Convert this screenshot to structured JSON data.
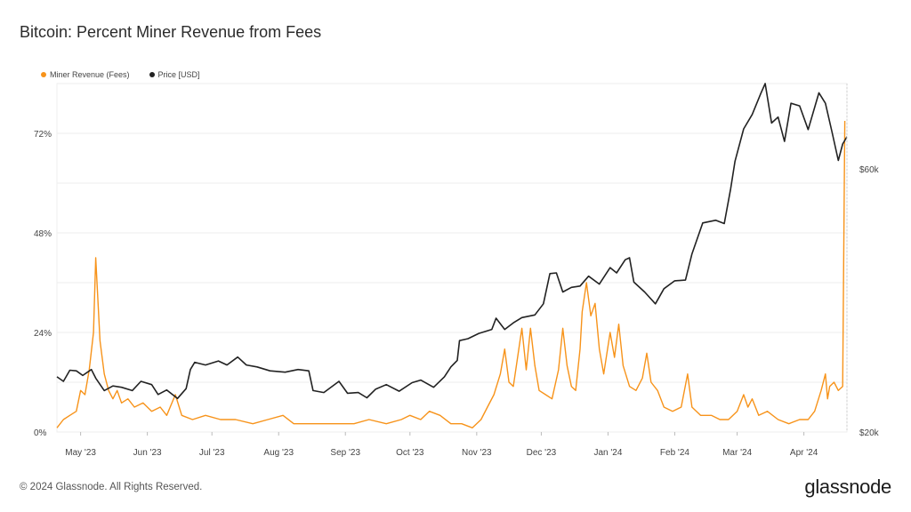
{
  "title": "Bitcoin: Percent Miner Revenue from Fees",
  "footer": "© 2024 Glassnode. All Rights Reserved.",
  "brand": "glassnode",
  "chart_data": {
    "type": "line",
    "legend_position": "top-left",
    "grid": true,
    "x_ticks": [
      "May '23",
      "Jun '23",
      "Jul '23",
      "Aug '23",
      "Sep '23",
      "Oct '23",
      "Nov '23",
      "Dec '23",
      "Jan '24",
      "Feb '24",
      "Mar '24",
      "Apr '24"
    ],
    "y_left_ticks": [
      {
        "value": 0,
        "label": "0%"
      },
      {
        "value": 24,
        "label": "24%"
      },
      {
        "value": 48,
        "label": "48%"
      },
      {
        "value": 72,
        "label": "72%"
      }
    ],
    "y_right_ticks": [
      {
        "value": 20000,
        "label": "$20k"
      },
      {
        "value": 60000,
        "label": "$60k"
      }
    ],
    "ylim_left": [
      0,
      84
    ],
    "ylim_right": [
      20000,
      73000
    ],
    "xlim": [
      "2023-04-20",
      "2024-04-21"
    ],
    "series": [
      {
        "name": "Miner Revenue (Fees)",
        "axis": "left",
        "color": "#f7931a",
        "points": [
          [
            "2023-04-20",
            1
          ],
          [
            "2023-04-23",
            3
          ],
          [
            "2023-04-26",
            4
          ],
          [
            "2023-04-29",
            5
          ],
          [
            "2023-05-01",
            10
          ],
          [
            "2023-05-03",
            9
          ],
          [
            "2023-05-05",
            15
          ],
          [
            "2023-05-07",
            24
          ],
          [
            "2023-05-08",
            42
          ],
          [
            "2023-05-10",
            22
          ],
          [
            "2023-05-12",
            14
          ],
          [
            "2023-05-14",
            10
          ],
          [
            "2023-05-16",
            8
          ],
          [
            "2023-05-18",
            10
          ],
          [
            "2023-05-20",
            7
          ],
          [
            "2023-05-23",
            8
          ],
          [
            "2023-05-26",
            6
          ],
          [
            "2023-05-30",
            7
          ],
          [
            "2023-06-03",
            5
          ],
          [
            "2023-06-07",
            6
          ],
          [
            "2023-06-10",
            4
          ],
          [
            "2023-06-14",
            9
          ],
          [
            "2023-06-17",
            4
          ],
          [
            "2023-06-22",
            3
          ],
          [
            "2023-06-28",
            4
          ],
          [
            "2023-07-05",
            3
          ],
          [
            "2023-07-12",
            3
          ],
          [
            "2023-07-20",
            2
          ],
          [
            "2023-07-27",
            3
          ],
          [
            "2023-08-03",
            4
          ],
          [
            "2023-08-08",
            2
          ],
          [
            "2023-08-15",
            2
          ],
          [
            "2023-08-22",
            2
          ],
          [
            "2023-08-30",
            2
          ],
          [
            "2023-09-05",
            2
          ],
          [
            "2023-09-12",
            3
          ],
          [
            "2023-09-20",
            2
          ],
          [
            "2023-09-27",
            3
          ],
          [
            "2023-10-01",
            4
          ],
          [
            "2023-10-06",
            3
          ],
          [
            "2023-10-10",
            5
          ],
          [
            "2023-10-15",
            4
          ],
          [
            "2023-10-20",
            2
          ],
          [
            "2023-10-25",
            2
          ],
          [
            "2023-10-30",
            1
          ],
          [
            "2023-11-03",
            3
          ],
          [
            "2023-11-06",
            6
          ],
          [
            "2023-11-09",
            9
          ],
          [
            "2023-11-12",
            14
          ],
          [
            "2023-11-14",
            20
          ],
          [
            "2023-11-16",
            12
          ],
          [
            "2023-11-18",
            11
          ],
          [
            "2023-11-20",
            18
          ],
          [
            "2023-11-22",
            25
          ],
          [
            "2023-11-24",
            15
          ],
          [
            "2023-11-26",
            25
          ],
          [
            "2023-11-28",
            16
          ],
          [
            "2023-11-30",
            10
          ],
          [
            "2023-12-03",
            9
          ],
          [
            "2023-12-06",
            8
          ],
          [
            "2023-12-09",
            15
          ],
          [
            "2023-12-11",
            25
          ],
          [
            "2023-12-13",
            16
          ],
          [
            "2023-12-15",
            11
          ],
          [
            "2023-12-17",
            10
          ],
          [
            "2023-12-19",
            20
          ],
          [
            "2023-12-20",
            29
          ],
          [
            "2023-12-22",
            36
          ],
          [
            "2023-12-24",
            28
          ],
          [
            "2023-12-26",
            31
          ],
          [
            "2023-12-28",
            20
          ],
          [
            "2023-12-30",
            14
          ],
          [
            "2024-01-02",
            24
          ],
          [
            "2024-01-04",
            18
          ],
          [
            "2024-01-06",
            26
          ],
          [
            "2024-01-08",
            16
          ],
          [
            "2024-01-11",
            11
          ],
          [
            "2024-01-14",
            10
          ],
          [
            "2024-01-17",
            13
          ],
          [
            "2024-01-19",
            19
          ],
          [
            "2024-01-21",
            12
          ],
          [
            "2024-01-24",
            10
          ],
          [
            "2024-01-27",
            6
          ],
          [
            "2024-01-31",
            5
          ],
          [
            "2024-02-04",
            6
          ],
          [
            "2024-02-07",
            14
          ],
          [
            "2024-02-09",
            6
          ],
          [
            "2024-02-13",
            4
          ],
          [
            "2024-02-18",
            4
          ],
          [
            "2024-02-22",
            3
          ],
          [
            "2024-02-26",
            3
          ],
          [
            "2024-03-01",
            5
          ],
          [
            "2024-03-04",
            9
          ],
          [
            "2024-03-06",
            6
          ],
          [
            "2024-03-08",
            8
          ],
          [
            "2024-03-11",
            4
          ],
          [
            "2024-03-15",
            5
          ],
          [
            "2024-03-20",
            3
          ],
          [
            "2024-03-25",
            2
          ],
          [
            "2024-03-30",
            3
          ],
          [
            "2024-04-03",
            3
          ],
          [
            "2024-04-06",
            5
          ],
          [
            "2024-04-09",
            10
          ],
          [
            "2024-04-11",
            14
          ],
          [
            "2024-04-12",
            8
          ],
          [
            "2024-04-13",
            11
          ],
          [
            "2024-04-15",
            12
          ],
          [
            "2024-04-17",
            10
          ],
          [
            "2024-04-19",
            11
          ],
          [
            "2024-04-20",
            75
          ]
        ]
      },
      {
        "name": "Price [USD]",
        "axis": "right",
        "color": "#222222",
        "points": [
          [
            "2023-04-20",
            28400
          ],
          [
            "2023-04-23",
            27700
          ],
          [
            "2023-04-26",
            29400
          ],
          [
            "2023-04-29",
            29300
          ],
          [
            "2023-05-02",
            28600
          ],
          [
            "2023-05-06",
            29500
          ],
          [
            "2023-05-08",
            28200
          ],
          [
            "2023-05-12",
            26300
          ],
          [
            "2023-05-16",
            27000
          ],
          [
            "2023-05-20",
            26800
          ],
          [
            "2023-05-25",
            26300
          ],
          [
            "2023-05-29",
            27700
          ],
          [
            "2023-06-03",
            27200
          ],
          [
            "2023-06-06",
            25700
          ],
          [
            "2023-06-10",
            26400
          ],
          [
            "2023-06-15",
            25100
          ],
          [
            "2023-06-19",
            26600
          ],
          [
            "2023-06-21",
            29500
          ],
          [
            "2023-06-23",
            30600
          ],
          [
            "2023-06-28",
            30200
          ],
          [
            "2023-07-04",
            30800
          ],
          [
            "2023-07-08",
            30200
          ],
          [
            "2023-07-13",
            31400
          ],
          [
            "2023-07-17",
            30200
          ],
          [
            "2023-07-22",
            29900
          ],
          [
            "2023-07-28",
            29300
          ],
          [
            "2023-08-04",
            29100
          ],
          [
            "2023-08-10",
            29500
          ],
          [
            "2023-08-15",
            29300
          ],
          [
            "2023-08-17",
            26300
          ],
          [
            "2023-08-22",
            26000
          ],
          [
            "2023-08-29",
            27700
          ],
          [
            "2023-09-02",
            25900
          ],
          [
            "2023-09-07",
            26000
          ],
          [
            "2023-09-11",
            25200
          ],
          [
            "2023-09-15",
            26500
          ],
          [
            "2023-09-20",
            27200
          ],
          [
            "2023-09-26",
            26200
          ],
          [
            "2023-10-02",
            27500
          ],
          [
            "2023-10-06",
            27900
          ],
          [
            "2023-10-12",
            26800
          ],
          [
            "2023-10-17",
            28400
          ],
          [
            "2023-10-20",
            29900
          ],
          [
            "2023-10-23",
            30900
          ],
          [
            "2023-10-24",
            33900
          ],
          [
            "2023-10-28",
            34200
          ],
          [
            "2023-11-02",
            35000
          ],
          [
            "2023-11-08",
            35600
          ],
          [
            "2023-11-10",
            37300
          ],
          [
            "2023-11-14",
            35600
          ],
          [
            "2023-11-18",
            36600
          ],
          [
            "2023-11-22",
            37400
          ],
          [
            "2023-11-28",
            37800
          ],
          [
            "2023-12-02",
            39500
          ],
          [
            "2023-12-05",
            44100
          ],
          [
            "2023-12-08",
            44200
          ],
          [
            "2023-12-11",
            41300
          ],
          [
            "2023-12-15",
            42000
          ],
          [
            "2023-12-19",
            42200
          ],
          [
            "2023-12-23",
            43700
          ],
          [
            "2023-12-28",
            42500
          ],
          [
            "2024-01-02",
            45000
          ],
          [
            "2024-01-05",
            44200
          ],
          [
            "2024-01-09",
            46200
          ],
          [
            "2024-01-11",
            46500
          ],
          [
            "2024-01-13",
            42800
          ],
          [
            "2024-01-18",
            41300
          ],
          [
            "2024-01-23",
            39500
          ],
          [
            "2024-01-27",
            41800
          ],
          [
            "2024-02-01",
            43000
          ],
          [
            "2024-02-06",
            43100
          ],
          [
            "2024-02-09",
            47100
          ],
          [
            "2024-02-14",
            51800
          ],
          [
            "2024-02-20",
            52200
          ],
          [
            "2024-02-24",
            51700
          ],
          [
            "2024-02-27",
            57000
          ],
          [
            "2024-02-29",
            61200
          ],
          [
            "2024-03-04",
            66100
          ],
          [
            "2024-03-08",
            68300
          ],
          [
            "2024-03-12",
            71500
          ],
          [
            "2024-03-14",
            73000
          ],
          [
            "2024-03-17",
            67000
          ],
          [
            "2024-03-20",
            67900
          ],
          [
            "2024-03-23",
            64200
          ],
          [
            "2024-03-26",
            70000
          ],
          [
            "2024-03-30",
            69600
          ],
          [
            "2024-04-03",
            66000
          ],
          [
            "2024-04-08",
            71600
          ],
          [
            "2024-04-11",
            70000
          ],
          [
            "2024-04-14",
            65700
          ],
          [
            "2024-04-17",
            61300
          ],
          [
            "2024-04-19",
            63800
          ],
          [
            "2024-04-21",
            64900
          ]
        ]
      }
    ]
  }
}
